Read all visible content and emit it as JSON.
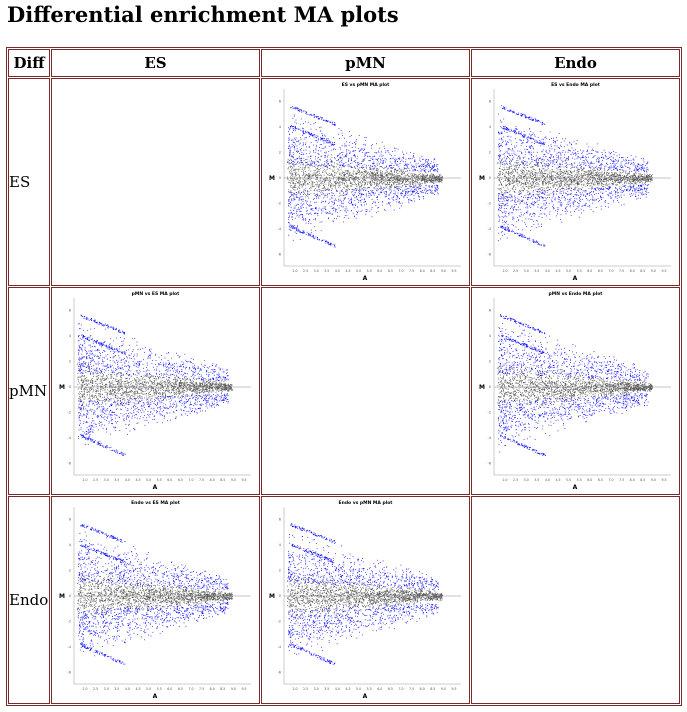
{
  "page": {
    "title": "Differential enrichment MA plots"
  },
  "table": {
    "corner": "Diff",
    "columns": [
      "ES",
      "pMN",
      "Endo"
    ],
    "rows": [
      "ES",
      "pMN",
      "Endo"
    ]
  },
  "colors": {
    "up_down": "#0000ff",
    "bulk": "#505050",
    "border": "#7a2a2a"
  },
  "plots": {
    "es_pmn": {
      "title": "ES vs pMN MA plot",
      "xlabel": "A",
      "ylabel": "M"
    },
    "es_endo": {
      "title": "ES vs Endo MA plot",
      "xlabel": "A",
      "ylabel": "M"
    },
    "pmn_es": {
      "title": "pMN vs ES MA plot",
      "xlabel": "A",
      "ylabel": "M"
    },
    "pmn_endo": {
      "title": "pMN vs Endo MA plot",
      "xlabel": "A",
      "ylabel": "M"
    },
    "endo_es": {
      "title": "Endo vs ES MA plot",
      "xlabel": "A",
      "ylabel": "M"
    },
    "endo_pmn": {
      "title": "Endo vs pMN MA plot",
      "xlabel": "A",
      "ylabel": "M"
    }
  },
  "axis": {
    "x_ticks": [
      "2.0",
      "2.5",
      "3.0",
      "3.5",
      "4.0",
      "4.5",
      "5.0",
      "5.5",
      "6.0",
      "6.5",
      "7.0",
      "7.5",
      "8.0",
      "8.5",
      "9.0",
      "9.5"
    ],
    "y_ticks": [
      "6",
      "4",
      "2",
      "0",
      "-2",
      "-4",
      "-6"
    ]
  }
}
